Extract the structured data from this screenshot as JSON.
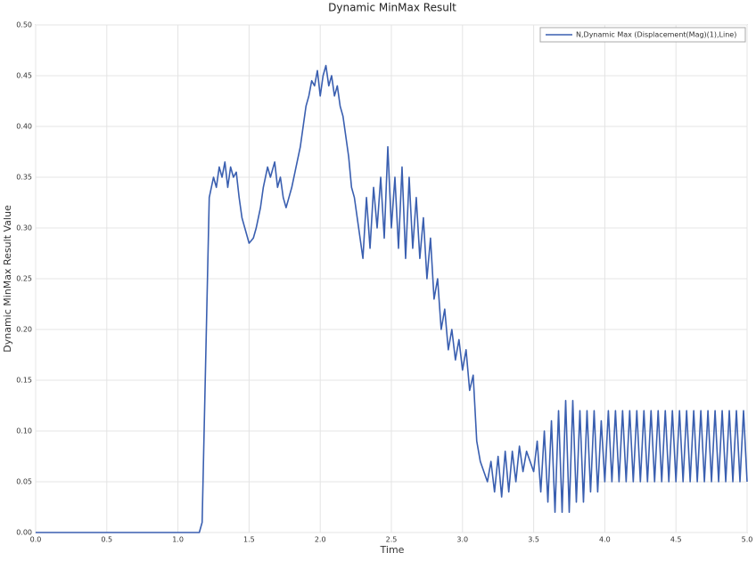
{
  "chart_data": {
    "type": "line",
    "title": "Dynamic MinMax Result",
    "x_label": "Time",
    "y_label": "Dynamic MinMax Result Value",
    "xlim": [
      0,
      5
    ],
    "ylim": [
      0,
      0.5
    ],
    "xticks": [
      {
        "value": 0,
        "label": "0.0"
      },
      0.5,
      {
        "value": 1,
        "label": "1.0"
      },
      1.5,
      {
        "value": 2,
        "label": "2.0"
      },
      2.5,
      {
        "value": 3,
        "label": "3.0"
      },
      3.5,
      {
        "value": 4,
        "label": "4.0"
      },
      4.5,
      {
        "value": 5,
        "label": "5.0"
      }
    ],
    "yticks": [
      {
        "value": 0,
        "label": "0.00"
      },
      {
        "value": 0.05,
        "label": "0.05"
      },
      {
        "value": 0.1,
        "label": "0.10"
      },
      {
        "value": 0.15,
        "label": "0.15"
      },
      {
        "value": 0.2,
        "label": "0.20"
      },
      {
        "value": 0.25,
        "label": "0.25"
      },
      {
        "value": 0.3,
        "label": "0.30"
      },
      {
        "value": 0.35,
        "label": "0.35"
      },
      {
        "value": 0.4,
        "label": "0.40"
      },
      {
        "value": 0.45,
        "label": "0.45"
      },
      {
        "value": 0.5,
        "label": "0.50"
      }
    ],
    "grid": true,
    "legend_position": "upper-right",
    "x": [
      0,
      1.15,
      1.17,
      1.22,
      1.25,
      1.27,
      1.29,
      1.31,
      1.33,
      1.35,
      1.37,
      1.39,
      1.41,
      1.43,
      1.45,
      1.47,
      1.5,
      1.53,
      1.55,
      1.58,
      1.6,
      1.63,
      1.65,
      1.68,
      1.7,
      1.72,
      1.74,
      1.76,
      1.78,
      1.8,
      1.83,
      1.86,
      1.88,
      1.9,
      1.92,
      1.94,
      1.96,
      1.98,
      2.0,
      2.02,
      2.04,
      2.06,
      2.08,
      2.1,
      2.12,
      2.14,
      2.16,
      2.18,
      2.2,
      2.22,
      2.24,
      2.26,
      2.28,
      2.3,
      2.325,
      2.35,
      2.375,
      2.4,
      2.425,
      2.45,
      2.475,
      2.5,
      2.525,
      2.55,
      2.575,
      2.6,
      2.625,
      2.65,
      2.675,
      2.7,
      2.725,
      2.75,
      2.775,
      2.8,
      2.825,
      2.85,
      2.875,
      2.9,
      2.925,
      2.95,
      2.975,
      3.0,
      3.025,
      3.05,
      3.075,
      3.1,
      3.125,
      3.15,
      3.175,
      3.2,
      3.225,
      3.25,
      3.275,
      3.3,
      3.325,
      3.35,
      3.375,
      3.4,
      3.425,
      3.45,
      3.475,
      3.5,
      3.525,
      3.55,
      3.575,
      3.6,
      3.625,
      3.65,
      3.675,
      3.7,
      3.725,
      3.75,
      3.775,
      3.8,
      3.825,
      3.85,
      3.875,
      3.9,
      3.925,
      3.95,
      3.975,
      4.0,
      4.025,
      4.05,
      4.075,
      4.1,
      4.125,
      4.15,
      4.175,
      4.2,
      4.225,
      4.25,
      4.275,
      4.3,
      4.325,
      4.35,
      4.375,
      4.4,
      4.425,
      4.45,
      4.475,
      4.5,
      4.525,
      4.55,
      4.575,
      4.6,
      4.625,
      4.65,
      4.675,
      4.7,
      4.725,
      4.75,
      4.775,
      4.8,
      4.825,
      4.85,
      4.875,
      4.9,
      4.925,
      4.95,
      4.975,
      5.0
    ],
    "series": [
      {
        "name": "N,Dynamic Max (Displacement(Mag)(1),Line)",
        "color": "#3a5fb0",
        "values": [
          0,
          0,
          0.01,
          0.33,
          0.35,
          0.34,
          0.36,
          0.35,
          0.365,
          0.34,
          0.36,
          0.35,
          0.355,
          0.33,
          0.31,
          0.3,
          0.285,
          0.29,
          0.3,
          0.32,
          0.34,
          0.36,
          0.35,
          0.365,
          0.34,
          0.35,
          0.33,
          0.32,
          0.33,
          0.34,
          0.36,
          0.38,
          0.4,
          0.42,
          0.43,
          0.445,
          0.44,
          0.455,
          0.43,
          0.45,
          0.46,
          0.44,
          0.45,
          0.43,
          0.44,
          0.42,
          0.41,
          0.39,
          0.37,
          0.34,
          0.33,
          0.31,
          0.29,
          0.27,
          0.33,
          0.28,
          0.34,
          0.3,
          0.35,
          0.29,
          0.38,
          0.3,
          0.35,
          0.28,
          0.36,
          0.27,
          0.35,
          0.28,
          0.33,
          0.27,
          0.31,
          0.25,
          0.29,
          0.23,
          0.25,
          0.2,
          0.22,
          0.18,
          0.2,
          0.17,
          0.19,
          0.16,
          0.18,
          0.14,
          0.155,
          0.09,
          0.07,
          0.06,
          0.05,
          0.07,
          0.04,
          0.075,
          0.035,
          0.08,
          0.04,
          0.08,
          0.05,
          0.085,
          0.06,
          0.08,
          0.07,
          0.06,
          0.09,
          0.04,
          0.1,
          0.03,
          0.11,
          0.02,
          0.12,
          0.02,
          0.13,
          0.02,
          0.13,
          0.03,
          0.12,
          0.03,
          0.12,
          0.04,
          0.12,
          0.04,
          0.11,
          0.05,
          0.12,
          0.05,
          0.12,
          0.05,
          0.12,
          0.05,
          0.12,
          0.05,
          0.12,
          0.05,
          0.12,
          0.05,
          0.12,
          0.05,
          0.12,
          0.05,
          0.12,
          0.05,
          0.12,
          0.05,
          0.12,
          0.05,
          0.12,
          0.05,
          0.12,
          0.05,
          0.12,
          0.05,
          0.12,
          0.05,
          0.12,
          0.05,
          0.12,
          0.05,
          0.12,
          0.05,
          0.12,
          0.05,
          0.12,
          0.05
        ]
      }
    ]
  }
}
